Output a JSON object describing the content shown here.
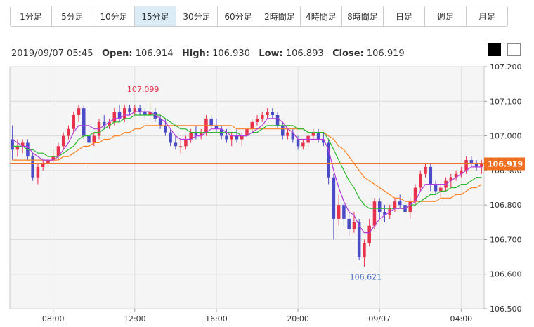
{
  "tabs": [
    {
      "label": "1分足",
      "active": false
    },
    {
      "label": "5分足",
      "active": false
    },
    {
      "label": "10分足",
      "active": false
    },
    {
      "label": "15分足",
      "active": true
    },
    {
      "label": "30分足",
      "active": false
    },
    {
      "label": "60分足",
      "active": false
    },
    {
      "label": "2時間足",
      "active": false
    },
    {
      "label": "4時間足",
      "active": false
    },
    {
      "label": "8時間足",
      "active": false
    },
    {
      "label": "日足",
      "active": false
    },
    {
      "label": "週足",
      "active": false
    },
    {
      "label": "月足",
      "active": false
    }
  ],
  "ohlc": {
    "datetime": "2019/09/07 05:45",
    "open_label": "Open:",
    "open": "106.914",
    "high_label": "High:",
    "high": "106.930",
    "low_label": "Low:",
    "low": "106.893",
    "close_label": "Close:",
    "close": "106.919"
  },
  "colors": {
    "up": "#e8314b",
    "down": "#4b4bc8",
    "ma_short": "#b43cdc",
    "ma_mid": "#2db82d",
    "ma_long": "#ff8020",
    "price_line": "#e8742a",
    "price_badge": "#f07020",
    "high_label": "#e8314b",
    "low_label": "#4b6fc8"
  },
  "chart_data": {
    "type": "candlestick",
    "y_ticks": [
      "107.200",
      "107.100",
      "107.000",
      "106.900",
      "106.800",
      "106.700",
      "106.600",
      "106.500"
    ],
    "ylim": [
      106.5,
      107.2
    ],
    "x_ticks": [
      {
        "label": "08:00",
        "index": 8
      },
      {
        "label": "12:00",
        "index": 24
      },
      {
        "label": "16:00",
        "index": 40
      },
      {
        "label": "20:00",
        "index": 56
      },
      {
        "label": "09/07",
        "index": 72
      },
      {
        "label": "04:00",
        "index": 88
      }
    ],
    "last_price": "106.919",
    "high_annotation": {
      "label": "107.099",
      "index": 27,
      "value": 107.099
    },
    "low_annotation": {
      "label": "106.621",
      "index": 69,
      "value": 106.621
    },
    "candles": [
      [
        106.99,
        107.03,
        106.93,
        106.96
      ],
      [
        106.96,
        106.99,
        106.94,
        106.97
      ],
      [
        106.97,
        106.99,
        106.95,
        106.98
      ],
      [
        106.98,
        106.99,
        106.93,
        106.94
      ],
      [
        106.94,
        106.95,
        106.87,
        106.88
      ],
      [
        106.88,
        106.92,
        106.86,
        106.91
      ],
      [
        106.91,
        106.93,
        106.9,
        106.92
      ],
      [
        106.92,
        106.94,
        106.91,
        106.93
      ],
      [
        106.93,
        106.96,
        106.92,
        106.94
      ],
      [
        106.94,
        106.98,
        106.93,
        106.97
      ],
      [
        106.97,
        107.01,
        106.96,
        107.0
      ],
      [
        107.0,
        107.03,
        106.99,
        107.02
      ],
      [
        107.02,
        107.07,
        107.01,
        107.06
      ],
      [
        107.06,
        107.09,
        107.04,
        107.08
      ],
      [
        107.08,
        107.09,
        106.99,
        107.0
      ],
      [
        107.0,
        107.01,
        106.92,
        106.98
      ],
      [
        106.98,
        107.01,
        106.97,
        107.0
      ],
      [
        107.0,
        107.05,
        106.99,
        107.04
      ],
      [
        107.04,
        107.06,
        107.02,
        107.03
      ],
      [
        107.03,
        107.05,
        107.02,
        107.04
      ],
      [
        107.04,
        107.08,
        107.03,
        107.07
      ],
      [
        107.07,
        107.09,
        107.04,
        107.05
      ],
      [
        107.05,
        107.09,
        107.04,
        107.08
      ],
      [
        107.08,
        107.09,
        107.06,
        107.07
      ],
      [
        107.07,
        107.09,
        107.06,
        107.08
      ],
      [
        107.08,
        107.09,
        107.06,
        107.07
      ],
      [
        107.07,
        107.08,
        107.05,
        107.06
      ],
      [
        107.06,
        107.1,
        107.05,
        107.07
      ],
      [
        107.07,
        107.08,
        107.04,
        107.05
      ],
      [
        107.05,
        107.06,
        107.02,
        107.03
      ],
      [
        107.03,
        107.05,
        107.0,
        107.01
      ],
      [
        107.01,
        107.02,
        106.97,
        106.98
      ],
      [
        106.98,
        107.0,
        106.96,
        106.97
      ],
      [
        106.97,
        106.99,
        106.95,
        106.97
      ],
      [
        106.97,
        107.0,
        106.96,
        106.99
      ],
      [
        106.99,
        107.02,
        106.98,
        107.01
      ],
      [
        107.01,
        107.03,
        106.99,
        107.0
      ],
      [
        107.0,
        107.02,
        106.99,
        107.01
      ],
      [
        107.01,
        107.06,
        107.0,
        107.05
      ],
      [
        107.05,
        107.06,
        107.02,
        107.03
      ],
      [
        107.03,
        107.05,
        107.01,
        107.02
      ],
      [
        107.02,
        107.03,
        106.99,
        107.0
      ],
      [
        107.0,
        107.02,
        106.98,
        106.99
      ],
      [
        106.99,
        107.01,
        106.97,
        107.0
      ],
      [
        107.0,
        107.02,
        106.98,
        106.99
      ],
      [
        106.99,
        107.01,
        106.97,
        107.0
      ],
      [
        107.0,
        107.03,
        106.99,
        107.02
      ],
      [
        107.02,
        107.05,
        107.01,
        107.04
      ],
      [
        107.04,
        107.06,
        107.03,
        107.05
      ],
      [
        107.05,
        107.07,
        107.04,
        107.06
      ],
      [
        107.06,
        107.08,
        107.05,
        107.07
      ],
      [
        107.07,
        107.08,
        107.05,
        107.06
      ],
      [
        107.06,
        107.07,
        107.02,
        107.03
      ],
      [
        107.03,
        107.04,
        106.99,
        107.0
      ],
      [
        107.0,
        107.02,
        106.99,
        107.01
      ],
      [
        107.01,
        107.02,
        106.98,
        106.99
      ],
      [
        106.99,
        107.0,
        106.96,
        106.97
      ],
      [
        106.97,
        106.99,
        106.96,
        106.98
      ],
      [
        106.98,
        107.01,
        106.97,
        107.0
      ],
      [
        107.0,
        107.02,
        106.99,
        107.01
      ],
      [
        107.01,
        107.02,
        106.98,
        106.99
      ],
      [
        106.99,
        107.01,
        106.97,
        106.98
      ],
      [
        106.98,
        106.99,
        106.86,
        106.88
      ],
      [
        106.88,
        106.89,
        106.7,
        106.76
      ],
      [
        106.76,
        106.83,
        106.74,
        106.8
      ],
      [
        106.8,
        106.82,
        106.74,
        106.76
      ],
      [
        106.76,
        106.78,
        106.71,
        106.73
      ],
      [
        106.73,
        106.78,
        106.72,
        106.75
      ],
      [
        106.75,
        106.76,
        106.64,
        106.65
      ],
      [
        106.65,
        106.7,
        106.621,
        106.69
      ],
      [
        106.69,
        106.76,
        106.68,
        106.74
      ],
      [
        106.74,
        106.82,
        106.73,
        106.81
      ],
      [
        106.81,
        106.82,
        106.76,
        106.78
      ],
      [
        106.78,
        106.8,
        106.75,
        106.77
      ],
      [
        106.77,
        106.8,
        106.76,
        106.79
      ],
      [
        106.79,
        106.82,
        106.78,
        106.81
      ],
      [
        106.81,
        106.83,
        106.79,
        106.8
      ],
      [
        106.8,
        106.81,
        106.77,
        106.78
      ],
      [
        106.78,
        106.82,
        106.76,
        106.81
      ],
      [
        106.81,
        106.86,
        106.8,
        106.85
      ],
      [
        106.85,
        106.9,
        106.84,
        106.89
      ],
      [
        106.89,
        106.92,
        106.88,
        106.91
      ],
      [
        106.91,
        106.92,
        106.84,
        106.86
      ],
      [
        106.86,
        106.87,
        106.83,
        106.84
      ],
      [
        106.84,
        106.86,
        106.82,
        106.85
      ],
      [
        106.85,
        106.88,
        106.84,
        106.87
      ],
      [
        106.87,
        106.89,
        106.85,
        106.88
      ],
      [
        106.88,
        106.9,
        106.87,
        106.89
      ],
      [
        106.89,
        106.91,
        106.88,
        106.9
      ],
      [
        106.9,
        106.94,
        106.89,
        106.93
      ],
      [
        106.93,
        106.94,
        106.91,
        106.92
      ],
      [
        106.92,
        106.93,
        106.9,
        106.91
      ],
      [
        106.91,
        106.93,
        106.89,
        106.92
      ]
    ],
    "ma_short": [
      106.99,
      106.98,
      106.97,
      106.97,
      106.95,
      106.94,
      106.93,
      106.93,
      106.93,
      106.94,
      106.96,
      106.98,
      107.01,
      107.03,
      107.03,
      107.03,
      107.02,
      107.02,
      107.03,
      107.04,
      107.05,
      107.05,
      107.06,
      107.06,
      107.07,
      107.07,
      107.07,
      107.07,
      107.06,
      107.05,
      107.04,
      107.02,
      107.0,
      106.99,
      106.99,
      106.99,
      107.0,
      107.0,
      107.01,
      107.02,
      107.02,
      107.02,
      107.01,
      107.0,
      107.0,
      107.0,
      107.0,
      107.01,
      107.02,
      107.03,
      107.05,
      107.05,
      107.05,
      107.04,
      107.02,
      107.01,
      106.99,
      106.99,
      106.99,
      106.99,
      106.99,
      106.99,
      106.96,
      106.9,
      106.85,
      106.81,
      106.78,
      106.77,
      106.74,
      106.72,
      106.72,
      106.74,
      106.76,
      106.77,
      106.78,
      106.79,
      106.79,
      106.79,
      106.8,
      106.81,
      106.84,
      106.86,
      106.86,
      106.86,
      106.86,
      106.86,
      106.87,
      106.88,
      106.89,
      106.9,
      106.91,
      106.91,
      106.91
    ],
    "ma_mid": [
      106.97,
      106.97,
      106.97,
      106.96,
      106.96,
      106.95,
      106.95,
      106.94,
      106.94,
      106.94,
      106.95,
      106.96,
      106.97,
      106.99,
      107.0,
      107.0,
      107.01,
      107.01,
      107.02,
      107.03,
      107.04,
      107.04,
      107.05,
      107.05,
      107.06,
      107.06,
      107.06,
      107.06,
      107.06,
      107.06,
      107.05,
      107.04,
      107.03,
      107.02,
      107.02,
      107.01,
      107.01,
      107.01,
      107.01,
      107.01,
      107.01,
      107.01,
      107.01,
      107.01,
      107.01,
      107.0,
      107.0,
      107.01,
      107.01,
      107.02,
      107.03,
      107.03,
      107.03,
      107.03,
      107.03,
      107.03,
      107.02,
      107.02,
      107.01,
      107.01,
      107.01,
      107.01,
      106.99,
      106.96,
      106.93,
      106.9,
      106.87,
      106.85,
      106.82,
      106.8,
      106.79,
      106.79,
      106.79,
      106.79,
      106.79,
      106.79,
      106.79,
      106.79,
      106.8,
      106.8,
      106.81,
      106.82,
      106.83,
      106.83,
      106.84,
      106.84,
      106.85,
      106.85,
      106.86,
      106.86,
      106.87,
      106.88,
      106.88
    ],
    "ma_long": [
      106.93,
      106.93,
      106.93,
      106.93,
      106.93,
      106.93,
      106.93,
      106.93,
      106.93,
      106.93,
      106.94,
      106.94,
      106.95,
      106.96,
      106.97,
      106.97,
      106.98,
      106.98,
      106.99,
      106.99,
      107.0,
      107.0,
      107.01,
      107.01,
      107.02,
      107.02,
      107.03,
      107.03,
      107.03,
      107.03,
      107.03,
      107.03,
      107.03,
      107.03,
      107.03,
      107.03,
      107.03,
      107.03,
      107.03,
      107.03,
      107.03,
      107.03,
      107.03,
      107.03,
      107.02,
      107.02,
      107.02,
      107.02,
      107.02,
      107.02,
      107.02,
      107.02,
      107.02,
      107.02,
      107.02,
      107.02,
      107.02,
      107.02,
      107.01,
      107.01,
      107.01,
      107.01,
      107.0,
      106.99,
      106.97,
      106.96,
      106.94,
      106.92,
      106.9,
      106.88,
      106.87,
      106.86,
      106.85,
      106.84,
      106.83,
      106.82,
      106.82,
      106.81,
      106.81,
      106.81,
      106.81,
      106.81,
      106.81,
      106.81,
      106.82,
      106.82,
      106.82,
      106.83,
      106.83,
      106.84,
      106.85,
      106.85,
      106.86
    ]
  }
}
